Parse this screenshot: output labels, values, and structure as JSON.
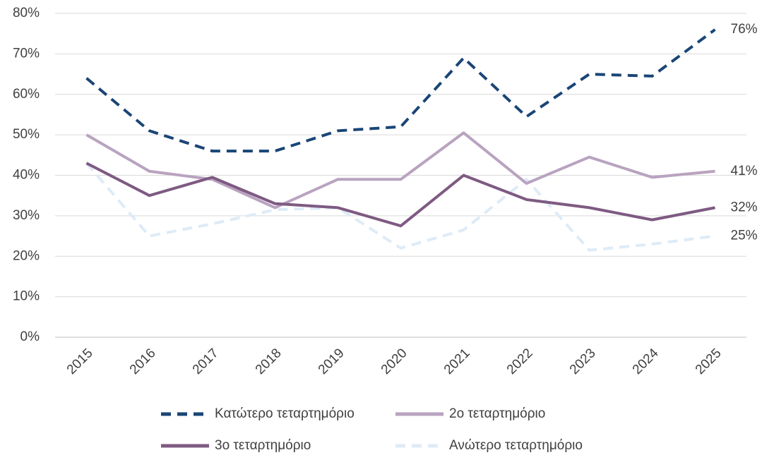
{
  "chart_data": {
    "type": "line",
    "categories": [
      "2015",
      "2016",
      "2017",
      "2018",
      "2019",
      "2020",
      "2021",
      "2022",
      "2023",
      "2024",
      "2025"
    ],
    "series": [
      {
        "name": "Κατώτερο τεταρτημόριο",
        "color": "#1a4577",
        "dash": true,
        "values": [
          64,
          51,
          46,
          46,
          51,
          52,
          69,
          54.5,
          65,
          64.5,
          76
        ],
        "value_labels": [
          null,
          null,
          null,
          null,
          null,
          null,
          null,
          null,
          null,
          null,
          "76%"
        ]
      },
      {
        "name": "2ο τεταρτημόριο",
        "color": "#b9a3c0",
        "dash": false,
        "values": [
          50,
          41,
          39,
          32,
          39,
          39,
          50.5,
          38,
          44.5,
          39.5,
          41
        ],
        "value_labels": [
          null,
          null,
          null,
          null,
          null,
          null,
          null,
          null,
          null,
          null,
          "41%"
        ]
      },
      {
        "name": "3ο τεταρτημόριο",
        "color": "#7e5a82",
        "dash": false,
        "values": [
          43,
          35,
          39.5,
          33,
          32,
          27.5,
          40,
          34,
          32,
          29,
          32
        ],
        "value_labels": [
          null,
          null,
          null,
          null,
          null,
          null,
          null,
          null,
          null,
          null,
          "32%"
        ]
      },
      {
        "name": "Ανώτερο τεταρτημόριο",
        "color": "#deebf7",
        "dash": true,
        "values": [
          43,
          25,
          28,
          31.5,
          32,
          22,
          26.5,
          39,
          21.5,
          23,
          25
        ],
        "value_labels": [
          null,
          null,
          null,
          null,
          null,
          null,
          null,
          null,
          null,
          null,
          "25%"
        ]
      }
    ],
    "ylim": [
      0,
      80
    ],
    "yticks": [
      {
        "value": 0,
        "label": "0%"
      },
      {
        "value": 10,
        "label": "10%"
      },
      {
        "value": 20,
        "label": "20%"
      },
      {
        "value": 30,
        "label": "30%"
      },
      {
        "value": 40,
        "label": "40%"
      },
      {
        "value": 50,
        "label": "50%"
      },
      {
        "value": 60,
        "label": "60%"
      },
      {
        "value": 70,
        "label": "70%"
      },
      {
        "value": 80,
        "label": "80%"
      }
    ],
    "grid": true
  }
}
